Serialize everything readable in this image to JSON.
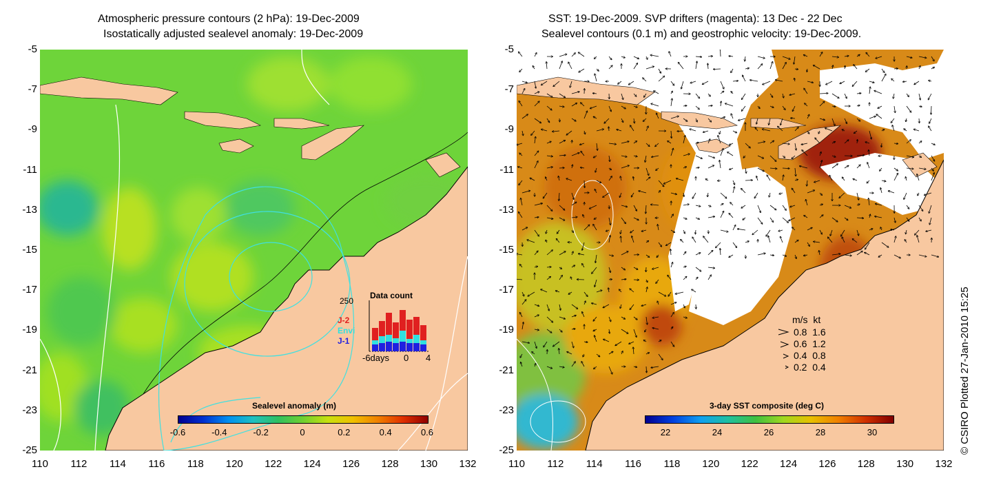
{
  "left_panel": {
    "title_line1": "Atmospheric pressure contours (2 hPa): 19-Dec-2009",
    "title_line2": "Isostatically adjusted sealevel anomaly: 19-Dec-2009",
    "colorbar": {
      "label": "Sealevel anomaly (m)",
      "ticks": [
        "-0.6",
        "-0.4",
        "-0.2",
        "0",
        "0.2",
        "0.4",
        "0.6"
      ]
    },
    "data_count": {
      "title": "Data count",
      "max_label": "250",
      "sat_j2": "J-2",
      "sat_envi": "Envi",
      "sat_j1": "J-1",
      "xticks": [
        "-6days",
        "0",
        "4"
      ],
      "colors": {
        "j2": "#e02020",
        "envi": "#30e0e0",
        "j1": "#2020e0"
      }
    }
  },
  "right_panel": {
    "title_line1": "SST: 19-Dec-2009. SVP drifters (magenta): 13 Dec - 22 Dec",
    "title_line2": "Sealevel contours (0.1 m) and geostrophic velocity: 19-Dec-2009.",
    "colorbar": {
      "label": "3-day SST composite (deg C)",
      "ticks": [
        "22",
        "24",
        "26",
        "28",
        "30"
      ]
    },
    "velocity_legend": {
      "header": "m/s  kt",
      "rows": [
        "0.8  1.6",
        "0.6  1.2",
        "0.4  0.8",
        "0.2  0.4"
      ]
    }
  },
  "axes": {
    "y_ticks": [
      "-5",
      "-7",
      "-9",
      "-11",
      "-13",
      "-15",
      "-17",
      "-19",
      "-21",
      "-23",
      "-25"
    ],
    "x_ticks": [
      "110",
      "112",
      "114",
      "116",
      "118",
      "120",
      "122",
      "124",
      "126",
      "128",
      "130",
      "132"
    ]
  },
  "credit": "© CSIRO Plotted 27-Jan-2010 15:25",
  "colors": {
    "land": "#f8c8a0",
    "ocean_green": "#7ee62a",
    "sst_orange": "#e07a10"
  }
}
